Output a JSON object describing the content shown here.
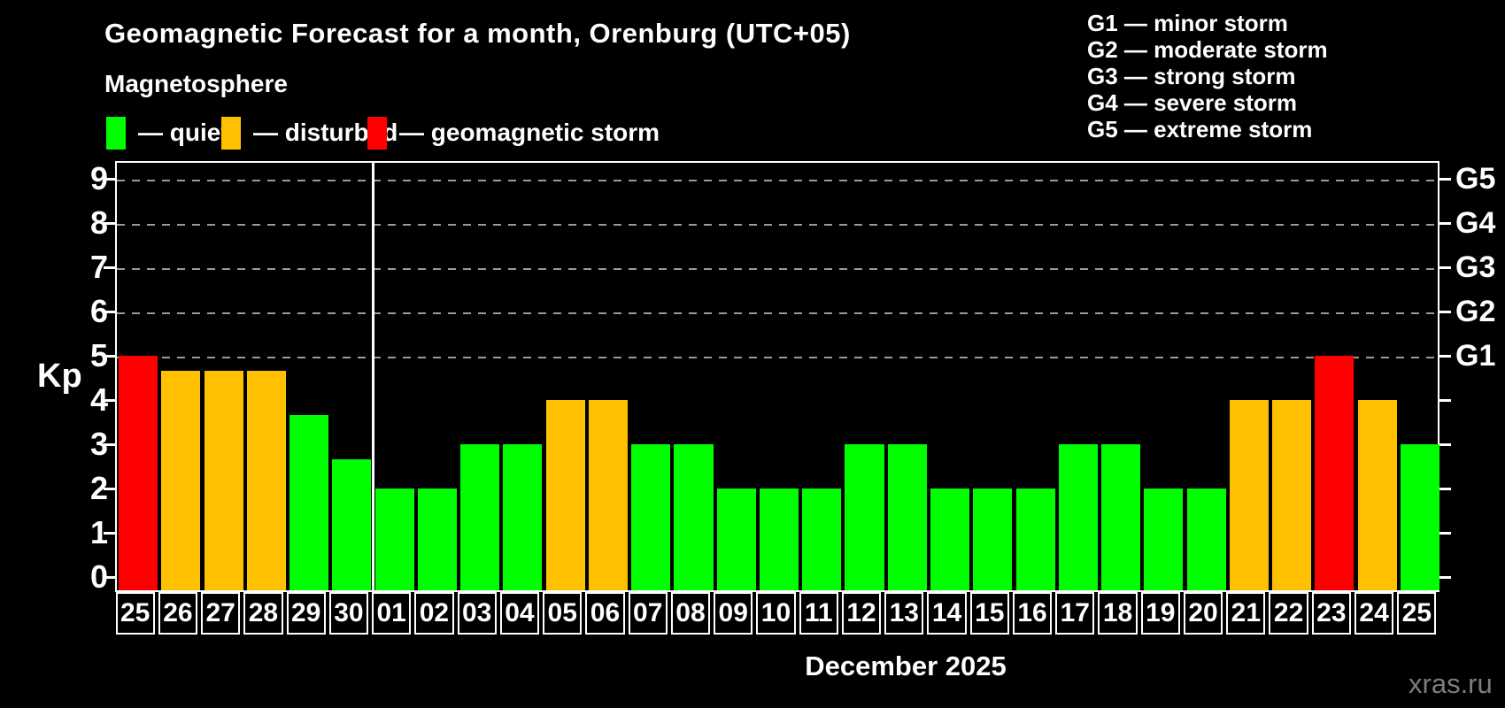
{
  "header": {
    "title": "Geomagnetic Forecast for a month, Orenburg (UTC+05)",
    "subtitle": "Magnetosphere"
  },
  "legend": {
    "items": [
      {
        "id": "quiet",
        "label": "— quiet",
        "color": "#00ff00"
      },
      {
        "id": "disturbed",
        "label": "— disturbed",
        "color": "#ffc000"
      },
      {
        "id": "storm",
        "label": "— geomagnetic storm",
        "color": "#ff0000"
      }
    ]
  },
  "g_legend": {
    "lines": [
      "G1 — minor storm",
      "G2 — moderate storm",
      "G3 — strong storm",
      "G4 — severe storm",
      "G5 — extreme storm"
    ]
  },
  "chart_data": {
    "type": "bar",
    "title": "Geomagnetic Forecast for a month, Orenburg (UTC+05)",
    "ylabel": "Kp",
    "month_label": "December 2025",
    "ylim": [
      0,
      9.4
    ],
    "y_ticks": [
      0,
      1,
      2,
      3,
      4,
      5,
      6,
      7,
      8,
      9
    ],
    "grid_levels": [
      5,
      6,
      7,
      8,
      9
    ],
    "g_labels": [
      {
        "kp": 5,
        "label": "G1"
      },
      {
        "kp": 6,
        "label": "G2"
      },
      {
        "kp": 7,
        "label": "G3"
      },
      {
        "kp": 8,
        "label": "G4"
      },
      {
        "kp": 9,
        "label": "G5"
      }
    ],
    "divider_after_index": 5,
    "bars": [
      {
        "day": "25",
        "kp": 5.0,
        "status": "storm"
      },
      {
        "day": "26",
        "kp": 4.67,
        "status": "disturbed"
      },
      {
        "day": "27",
        "kp": 4.67,
        "status": "disturbed"
      },
      {
        "day": "28",
        "kp": 4.67,
        "status": "disturbed"
      },
      {
        "day": "29",
        "kp": 3.67,
        "status": "quiet"
      },
      {
        "day": "30",
        "kp": 2.67,
        "status": "quiet"
      },
      {
        "day": "01",
        "kp": 2,
        "status": "quiet"
      },
      {
        "day": "02",
        "kp": 2,
        "status": "quiet"
      },
      {
        "day": "03",
        "kp": 3,
        "status": "quiet"
      },
      {
        "day": "04",
        "kp": 3,
        "status": "quiet"
      },
      {
        "day": "05",
        "kp": 4,
        "status": "disturbed"
      },
      {
        "day": "06",
        "kp": 4,
        "status": "disturbed"
      },
      {
        "day": "07",
        "kp": 3,
        "status": "quiet"
      },
      {
        "day": "08",
        "kp": 3,
        "status": "quiet"
      },
      {
        "day": "09",
        "kp": 2,
        "status": "quiet"
      },
      {
        "day": "10",
        "kp": 2,
        "status": "quiet"
      },
      {
        "day": "11",
        "kp": 2,
        "status": "quiet"
      },
      {
        "day": "12",
        "kp": 3,
        "status": "quiet"
      },
      {
        "day": "13",
        "kp": 3,
        "status": "quiet"
      },
      {
        "day": "14",
        "kp": 2,
        "status": "quiet"
      },
      {
        "day": "15",
        "kp": 2,
        "status": "quiet"
      },
      {
        "day": "16",
        "kp": 2,
        "status": "quiet"
      },
      {
        "day": "17",
        "kp": 3,
        "status": "quiet"
      },
      {
        "day": "18",
        "kp": 3,
        "status": "quiet"
      },
      {
        "day": "19",
        "kp": 2,
        "status": "quiet"
      },
      {
        "day": "20",
        "kp": 2,
        "status": "quiet"
      },
      {
        "day": "21",
        "kp": 4,
        "status": "disturbed"
      },
      {
        "day": "22",
        "kp": 4,
        "status": "disturbed"
      },
      {
        "day": "23",
        "kp": 5,
        "status": "storm"
      },
      {
        "day": "24",
        "kp": 4,
        "status": "disturbed"
      },
      {
        "day": "25",
        "kp": 3,
        "status": "quiet"
      }
    ]
  },
  "colors": {
    "quiet": "#00ff00",
    "disturbed": "#ffc000",
    "storm": "#ff0000",
    "background": "#000000",
    "axis": "#ffffff",
    "grid": "#9a9a9a",
    "watermark": "#7d7d7d"
  },
  "watermark": {
    "text": "xras.ru"
  }
}
